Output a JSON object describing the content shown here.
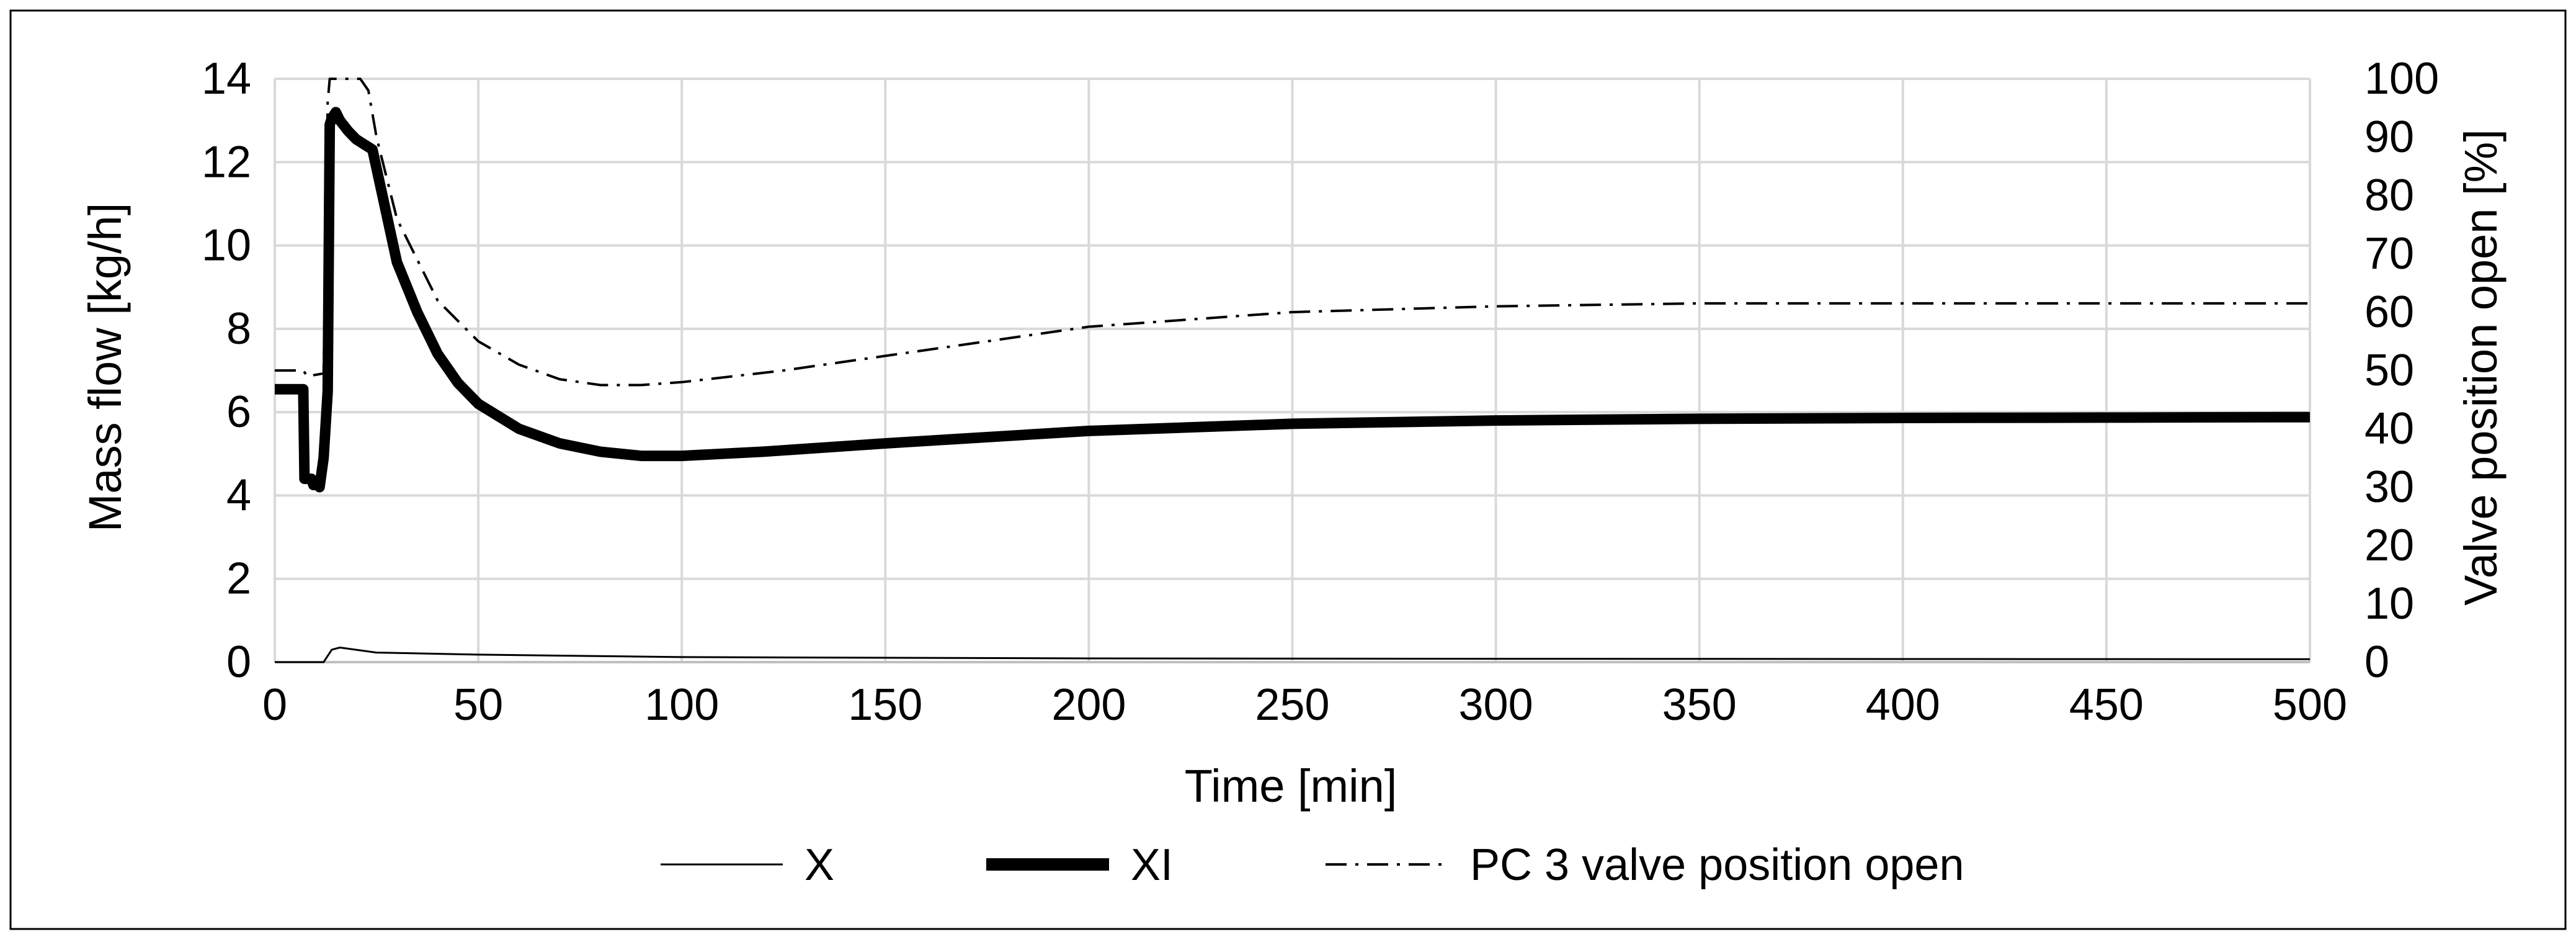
{
  "chart_data": {
    "type": "line",
    "title": "",
    "xlabel": "Time [min]",
    "ylabel": "Mass flow [kg/h]",
    "y2label": "Valve position open [%]",
    "xlim": [
      0,
      500
    ],
    "ylim": [
      0,
      14
    ],
    "y2lim": [
      0,
      100
    ],
    "x_ticks": [
      "0",
      "50",
      "100",
      "150",
      "200",
      "250",
      "300",
      "350",
      "400",
      "450",
      "500"
    ],
    "y_ticks": [
      "0",
      "2",
      "4",
      "6",
      "8",
      "10",
      "12",
      "14"
    ],
    "y2_ticks": [
      "0",
      "10",
      "20",
      "30",
      "40",
      "50",
      "60",
      "70",
      "80",
      "90",
      "100"
    ],
    "grid": true,
    "legend_position": "bottom",
    "series": [
      {
        "name": "X",
        "axis": "left",
        "style": "thin-solid",
        "color": "#000000",
        "points": [
          [
            0,
            0
          ],
          [
            12,
            0
          ],
          [
            14,
            0.3
          ],
          [
            16,
            0.35
          ],
          [
            25,
            0.23
          ],
          [
            50,
            0.18
          ],
          [
            100,
            0.12
          ],
          [
            200,
            0.09
          ],
          [
            300,
            0.08
          ],
          [
            500,
            0.07
          ]
        ]
      },
      {
        "name": "XI",
        "axis": "left",
        "style": "thick-solid",
        "color": "#000000",
        "points": [
          [
            0,
            6.55
          ],
          [
            7,
            6.55
          ],
          [
            7.3,
            4.4
          ],
          [
            9,
            4.4
          ],
          [
            9.5,
            4.25
          ],
          [
            10,
            4.3
          ],
          [
            11,
            4.2
          ],
          [
            12,
            4.9
          ],
          [
            13,
            6.5
          ],
          [
            13.5,
            12.9
          ],
          [
            14,
            13.05
          ],
          [
            15,
            13.2
          ],
          [
            16,
            13.0
          ],
          [
            18,
            12.75
          ],
          [
            20,
            12.55
          ],
          [
            24,
            12.3
          ],
          [
            30,
            9.6
          ],
          [
            35,
            8.4
          ],
          [
            40,
            7.4
          ],
          [
            45,
            6.7
          ],
          [
            50,
            6.2
          ],
          [
            60,
            5.6
          ],
          [
            70,
            5.25
          ],
          [
            80,
            5.05
          ],
          [
            90,
            4.95
          ],
          [
            100,
            4.95
          ],
          [
            120,
            5.05
          ],
          [
            150,
            5.25
          ],
          [
            200,
            5.55
          ],
          [
            250,
            5.72
          ],
          [
            300,
            5.8
          ],
          [
            350,
            5.84
          ],
          [
            400,
            5.86
          ],
          [
            450,
            5.87
          ],
          [
            500,
            5.88
          ]
        ]
      },
      {
        "name": "PC 3 valve position open",
        "axis": "right",
        "style": "dash-dot",
        "color": "#000000",
        "points": [
          [
            0,
            50
          ],
          [
            7,
            50
          ],
          [
            8,
            49
          ],
          [
            12,
            49.5
          ],
          [
            13,
            96
          ],
          [
            13.5,
            100
          ],
          [
            21,
            100
          ],
          [
            23,
            98
          ],
          [
            25,
            90
          ],
          [
            30,
            76
          ],
          [
            40,
            62
          ],
          [
            50,
            55
          ],
          [
            60,
            51
          ],
          [
            70,
            48.5
          ],
          [
            80,
            47.5
          ],
          [
            90,
            47.5
          ],
          [
            100,
            48
          ],
          [
            125,
            50
          ],
          [
            150,
            52.5
          ],
          [
            200,
            57.5
          ],
          [
            250,
            60
          ],
          [
            300,
            61
          ],
          [
            350,
            61.5
          ],
          [
            400,
            61.5
          ],
          [
            450,
            61.5
          ],
          [
            500,
            61.5
          ]
        ]
      }
    ]
  }
}
